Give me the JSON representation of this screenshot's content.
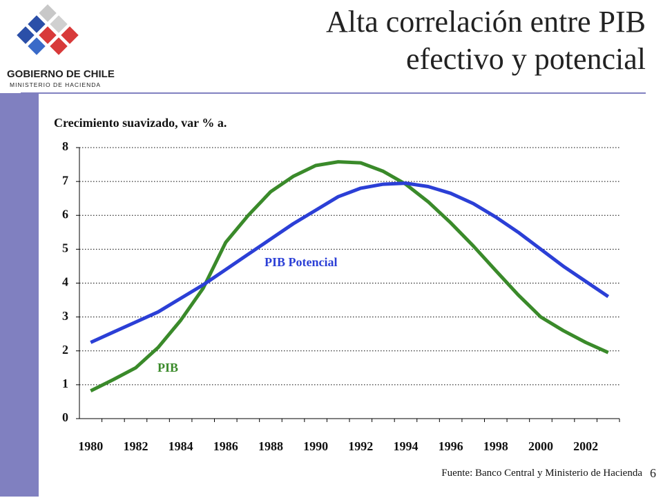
{
  "logo": {
    "name": "GOBIERNO DE CHILE",
    "ministry": "MINISTERIO DE HACIENDA"
  },
  "page_number": "6",
  "source": "Fuente: Banco Central y Ministerio de Hacienda",
  "chart_data": {
    "type": "line",
    "title": [
      "Alta correlación entre PIB",
      "efectivo y potencial"
    ],
    "subtitle": "Crecimiento suavizado, var % a.",
    "categories": [
      "1980",
      null,
      "1982",
      null,
      "1984",
      null,
      "1986",
      null,
      "1988",
      null,
      "1990",
      null,
      "1992",
      null,
      "1994",
      null,
      "1996",
      null,
      "1998",
      null,
      "2000",
      null,
      "2002",
      null
    ],
    "series": [
      {
        "name": "PIB",
        "color": "#3a8a2a",
        "values": [
          0.82,
          1.15,
          1.5,
          2.1,
          2.9,
          3.85,
          5.2,
          6.0,
          6.7,
          7.15,
          7.47,
          7.58,
          7.55,
          7.3,
          6.92,
          6.4,
          5.78,
          5.1,
          4.37,
          3.65,
          3.0,
          2.6,
          2.25,
          1.95
        ]
      },
      {
        "name": "PIB Potencial",
        "color": "#2b3fd6",
        "values": [
          2.25,
          2.55,
          2.85,
          3.15,
          3.55,
          3.95,
          4.4,
          4.85,
          5.3,
          5.75,
          6.15,
          6.55,
          6.8,
          6.92,
          6.95,
          6.85,
          6.65,
          6.35,
          5.95,
          5.5,
          5.0,
          4.5,
          4.05,
          3.6
        ]
      }
    ],
    "ylim": [
      0,
      8
    ],
    "yticks": [
      0,
      1,
      2,
      3,
      4,
      5,
      6,
      7,
      8
    ],
    "grid": true
  }
}
